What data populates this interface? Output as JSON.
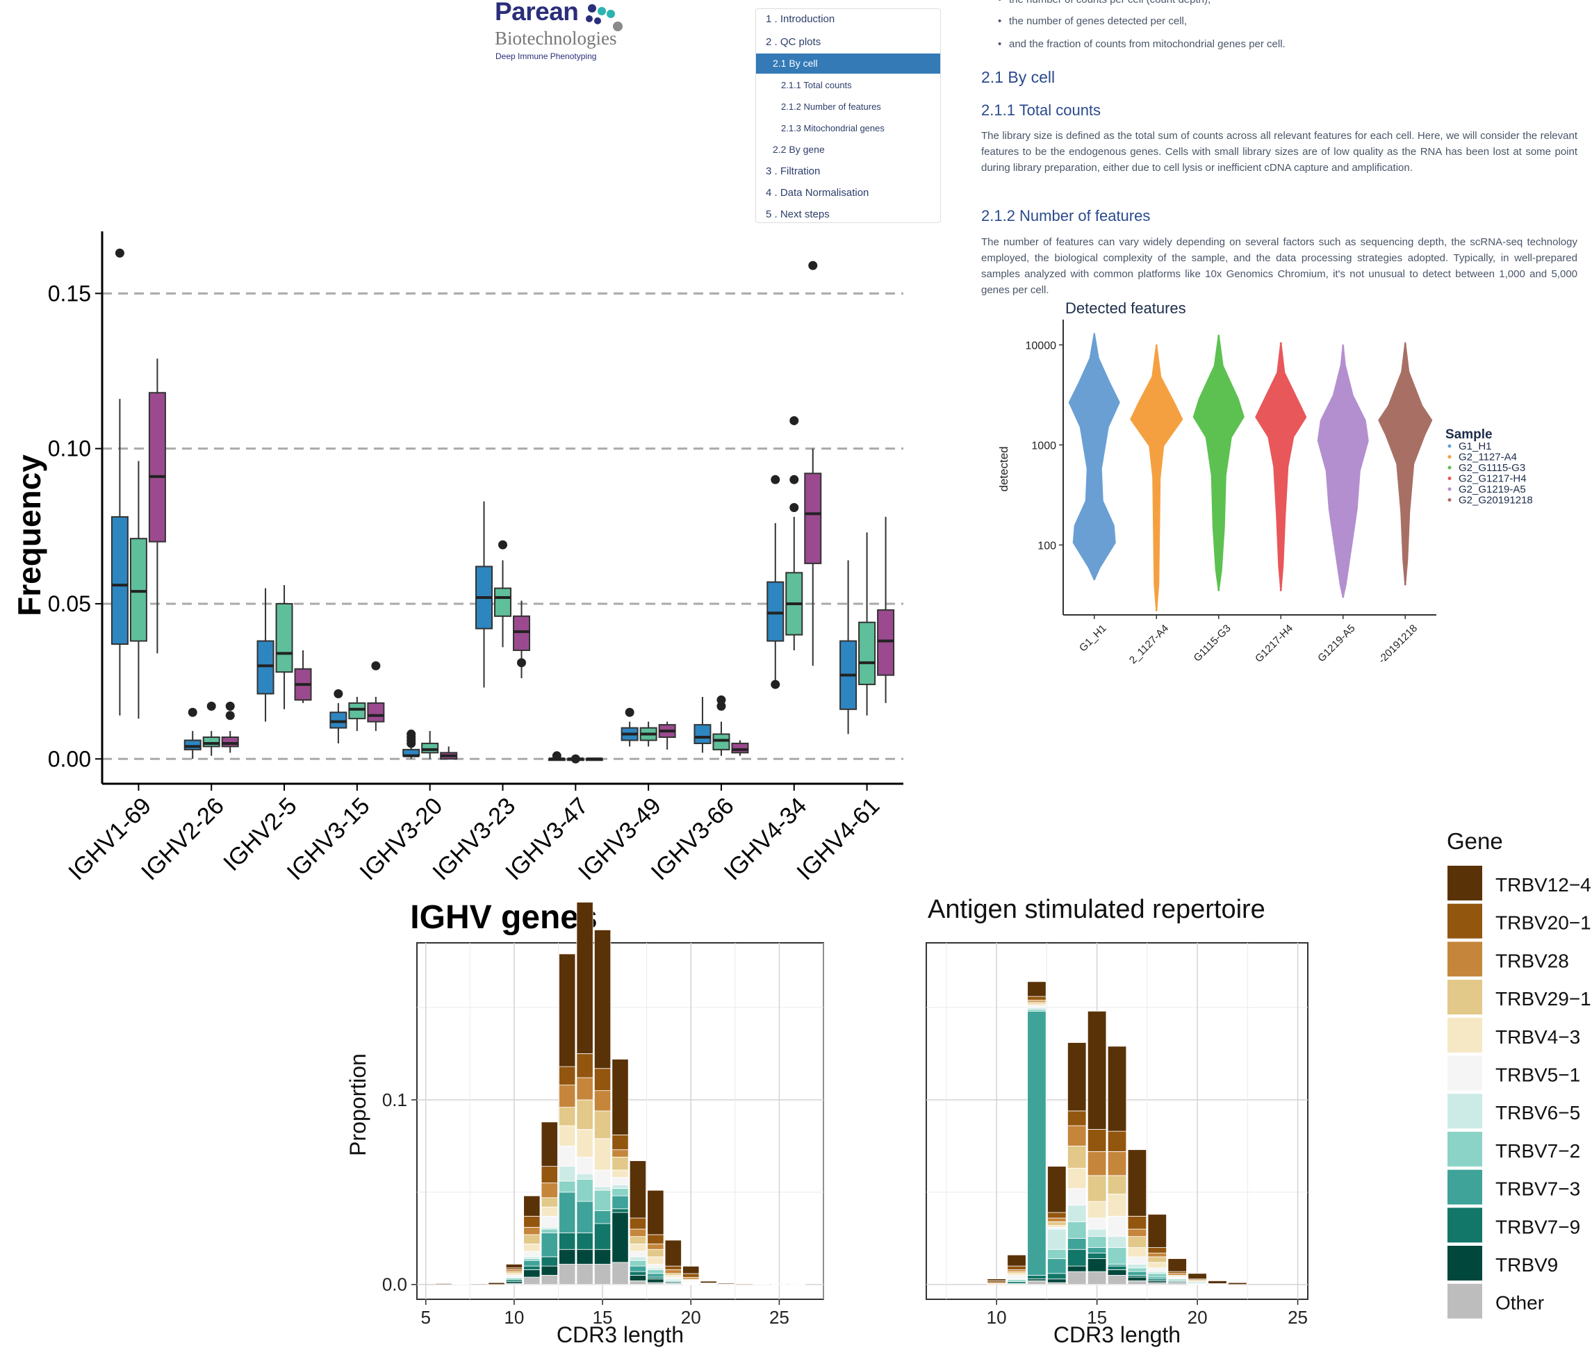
{
  "logo": {
    "name": "Parean",
    "sub": "Biotechnologies",
    "tagline": "Deep Immune Phenotyping",
    "colors": {
      "navy": "#2a2e7a",
      "teal": "#2bb3b1",
      "grey": "#8a8a8a"
    }
  },
  "toc": {
    "items": [
      {
        "label": "1 . Introduction",
        "level": 1,
        "active": false
      },
      {
        "label": "2 . QC plots",
        "level": 1,
        "active": false
      },
      {
        "label": "2.1 By cell",
        "level": 2,
        "active": true
      },
      {
        "label": "2.1.1 Total counts",
        "level": 3,
        "active": false
      },
      {
        "label": "2.1.2 Number of features",
        "level": 3,
        "active": false
      },
      {
        "label": "2.1.3 Mitochondrial genes",
        "level": 3,
        "active": false
      },
      {
        "label": "2.2 By gene",
        "level": 2,
        "active": false
      },
      {
        "label": "3 . Filtration",
        "level": 1,
        "active": false
      },
      {
        "label": "4 . Data Normalisation",
        "level": 1,
        "active": false
      },
      {
        "label": "5 . Next steps",
        "level": 1,
        "active": false
      }
    ]
  },
  "doc": {
    "bullets": [
      "the number of counts per cell (count depth),",
      "the number of genes detected per cell,",
      "and the fraction of counts from mitochondrial genes per cell."
    ],
    "h2": "2.1 By cell",
    "h3a": "2.1.1 Total counts",
    "p1": "The library size is defined as the total sum of counts across all relevant features for each cell. Here, we will consider the relevant features to be the endogenous genes. Cells with small library sizes are of low quality as the RNA has been lost at some point during library preparation, either due to cell lysis or inefficient cDNA capture and amplification.",
    "h3b": "2.1.2 Number of features",
    "p2": "The number of features can vary widely depending on several factors such as sequencing depth, the scRNA-seq technology employed, the biological complexity of the sample, and the data processing strategies adopted. Typically, in well-prepared samples analyzed with common platforms like 10x Genomics Chromium, it's not unusual to detect between 1,000 and 5,000 genes per cell."
  },
  "chart_data": [
    {
      "type": "box",
      "title": "IGHV genes",
      "ylabel": "Frequency",
      "xlabel": "",
      "ylim": [
        -0.008,
        0.17
      ],
      "yticks": [
        "0.00",
        "0.05",
        "0.10",
        "0.15"
      ],
      "grid": "horizontal dashed",
      "series_colors": [
        "#2e86c1",
        "#5fbf9a",
        "#9b4a8f"
      ],
      "categories": [
        "IGHV1-69",
        "IGHV2-26",
        "IGHV2-5",
        "IGHV3-15",
        "IGHV3-20",
        "IGHV3-23",
        "IGHV3-47",
        "IGHV3-49",
        "IGHV3-66",
        "IGHV4-34",
        "IGHV4-61"
      ],
      "boxes": [
        [
          [
            0.014,
            0.037,
            0.056,
            0.078,
            0.116,
            [
              0.163
            ]
          ],
          [
            0.013,
            0.038,
            0.054,
            0.071,
            0.096,
            []
          ],
          [
            0.034,
            0.07,
            0.091,
            0.118,
            0.129,
            []
          ]
        ],
        [
          [
            0.0,
            0.003,
            0.004,
            0.006,
            0.009,
            [
              0.015
            ]
          ],
          [
            0.001,
            0.004,
            0.005,
            0.007,
            0.009,
            [
              0.017
            ]
          ],
          [
            0.002,
            0.004,
            0.005,
            0.007,
            0.009,
            [
              0.017,
              0.014
            ]
          ]
        ],
        [
          [
            0.012,
            0.021,
            0.03,
            0.038,
            0.055,
            []
          ],
          [
            0.016,
            0.028,
            0.034,
            0.05,
            0.056,
            []
          ],
          [
            0.018,
            0.019,
            0.024,
            0.029,
            0.035,
            []
          ]
        ],
        [
          [
            0.005,
            0.01,
            0.012,
            0.015,
            0.018,
            [
              0.021
            ]
          ],
          [
            0.009,
            0.013,
            0.016,
            0.018,
            0.02,
            []
          ],
          [
            0.009,
            0.012,
            0.014,
            0.018,
            0.02,
            [
              0.03
            ]
          ]
        ],
        [
          [
            0.0,
            0.001,
            0.001,
            0.003,
            0.005,
            [
              0.005,
              0.006,
              0.007,
              0.008
            ]
          ],
          [
            0.0,
            0.002,
            0.003,
            0.005,
            0.009,
            []
          ],
          [
            0.0,
            0.0,
            0.001,
            0.002,
            0.004,
            []
          ]
        ],
        [
          [
            0.023,
            0.042,
            0.052,
            0.062,
            0.083,
            []
          ],
          [
            0.036,
            0.046,
            0.052,
            0.055,
            0.064,
            [
              0.069
            ]
          ],
          [
            0.026,
            0.035,
            0.041,
            0.046,
            0.051,
            [
              0.031
            ]
          ]
        ],
        [
          [
            0.0,
            0.0,
            0.0,
            0.0,
            0.0,
            [
              0.001
            ]
          ],
          [
            0.0,
            0.0,
            0.0,
            0.0,
            0.0,
            [
              0.0
            ]
          ],
          [
            0.0,
            0.0,
            0.0,
            0.0,
            0.0,
            []
          ]
        ],
        [
          [
            0.004,
            0.006,
            0.008,
            0.01,
            0.012,
            [
              0.015
            ]
          ],
          [
            0.004,
            0.006,
            0.008,
            0.01,
            0.012,
            []
          ],
          [
            0.003,
            0.007,
            0.009,
            0.011,
            0.012,
            []
          ]
        ],
        [
          [
            0.002,
            0.005,
            0.007,
            0.011,
            0.02,
            []
          ],
          [
            0.001,
            0.003,
            0.006,
            0.008,
            0.012,
            [
              0.017,
              0.019
            ]
          ],
          [
            0.001,
            0.002,
            0.003,
            0.005,
            0.006,
            []
          ]
        ],
        [
          [
            0.024,
            0.038,
            0.047,
            0.057,
            0.076,
            [
              0.09,
              0.024
            ]
          ],
          [
            0.035,
            0.04,
            0.05,
            0.06,
            0.078,
            [
              0.109,
              0.09,
              0.081
            ]
          ],
          [
            0.03,
            0.063,
            0.079,
            0.092,
            0.1,
            [
              0.159
            ]
          ]
        ],
        [
          [
            0.008,
            0.016,
            0.027,
            0.038,
            0.064,
            []
          ],
          [
            0.014,
            0.024,
            0.031,
            0.044,
            0.073,
            []
          ],
          [
            0.018,
            0.027,
            0.038,
            0.048,
            0.078,
            []
          ]
        ]
      ]
    },
    {
      "type": "violin",
      "title": "Detected features",
      "ylabel": "detected",
      "yscale": "log",
      "ylim": [
        20,
        13000
      ],
      "yticks": [
        {
          "value": 100,
          "label": "100"
        },
        {
          "value": 1000,
          "label": "1000"
        },
        {
          "value": 10000,
          "label": "10000"
        }
      ],
      "legend": {
        "title": "Sample",
        "position": "right"
      },
      "series": [
        {
          "name": "G1_H1",
          "tick": "G1_H1",
          "color": "#6a9fd4",
          "min": 45,
          "max": 13000
        },
        {
          "name": "G2_1127-A4",
          "tick": "2_1127-A4",
          "color": "#f5a040",
          "min": 22,
          "max": 10000
        },
        {
          "name": "G2_G1115-G3",
          "tick": "G1115-G3",
          "color": "#5cc150",
          "min": 35,
          "max": 12500
        },
        {
          "name": "G2_G1217-H4",
          "tick": "G1217-H4",
          "color": "#e8575a",
          "min": 35,
          "max": 10500
        },
        {
          "name": "G2_G1219-A5",
          "tick": "G1219-A5",
          "color": "#b38fd0",
          "min": 30,
          "max": 10000
        },
        {
          "name": "G2_G20191218",
          "tick": "-20191218",
          "color": "#a86f65",
          "min": 40,
          "max": 10500
        }
      ]
    },
    {
      "type": "bar",
      "stacked": true,
      "title": "",
      "xlabel": "CDR3 length",
      "ylabel": "Proportion",
      "xlim": [
        4.5,
        27.5
      ],
      "ylim": [
        -0.008,
        0.185
      ],
      "xticks": [
        5,
        10,
        15,
        20,
        25
      ],
      "yticks": [
        "0.0",
        "0.1"
      ],
      "x": [
        6,
        7,
        8,
        9,
        10,
        11,
        12,
        13,
        14,
        15,
        16,
        17,
        18,
        19,
        20,
        21,
        22,
        23,
        24,
        25,
        26
      ],
      "stacks": [
        [
          0.0005,
          0,
          0,
          0,
          0,
          0,
          0,
          0,
          0,
          0,
          0,
          0
        ],
        [
          0.0003,
          0,
          0,
          0,
          0,
          0,
          0,
          0,
          0,
          0,
          0,
          0
        ],
        [
          0.0004,
          0,
          0,
          0,
          0,
          0,
          0,
          0,
          0,
          0,
          0,
          0
        ],
        [
          0.001,
          0,
          0,
          0,
          0,
          0,
          0,
          0,
          0,
          0,
          0,
          0
        ],
        [
          0.002,
          0.001,
          0.001,
          0.001,
          0.001,
          0.001,
          0.0005,
          0.001,
          0,
          0.001,
          0.001,
          0.0005
        ],
        [
          0.011,
          0.006,
          0.004,
          0.005,
          0.004,
          0.003,
          0.001,
          0.001,
          0.003,
          0.002,
          0.004,
          0.004
        ],
        [
          0.024,
          0.009,
          0.008,
          0.005,
          0.005,
          0.006,
          0.001,
          0.002,
          0.013,
          0.005,
          0.005,
          0.005
        ],
        [
          0.061,
          0.01,
          0.012,
          0.01,
          0.011,
          0.011,
          0.008,
          0.006,
          0.022,
          0.009,
          0.008,
          0.011
        ],
        [
          0.082,
          0.013,
          0.012,
          0.016,
          0.015,
          0.009,
          0.003,
          0.012,
          0.017,
          0.009,
          0.008,
          0.011
        ],
        [
          0.075,
          0.012,
          0.011,
          0.015,
          0.017,
          0.009,
          0.002,
          0.011,
          0.007,
          0.014,
          0.008,
          0.011
        ],
        [
          0.041,
          0.008,
          0.004,
          0.007,
          0.004,
          0.004,
          0.002,
          0.004,
          0.007,
          0.002,
          0.027,
          0.012
        ],
        [
          0.031,
          0.006,
          0.004,
          0.004,
          0.004,
          0.003,
          0.002,
          0.003,
          0.003,
          0.002,
          0.003,
          0.002
        ],
        [
          0.024,
          0.005,
          0.003,
          0.004,
          0.004,
          0.002,
          0.001,
          0.002,
          0.002,
          0.001,
          0.002,
          0.001
        ],
        [
          0.014,
          0.002,
          0.002,
          0.001,
          0.001,
          0.001,
          0.0005,
          0.0005,
          0.0005,
          0.0005,
          0.0005,
          0.0005
        ],
        [
          0.004,
          0.002,
          0.001,
          0.0005,
          0.0005,
          0.0005,
          0.0002,
          0.0003,
          0.0003,
          0.0002,
          0.0002,
          0.0002
        ],
        [
          0.001,
          0.0003,
          0.0003,
          0.0002,
          0,
          0,
          0,
          0,
          0,
          0,
          0,
          0
        ],
        [
          0.0005,
          0.0002,
          0,
          0,
          0,
          0,
          0,
          0,
          0,
          0,
          0,
          0
        ],
        [
          0.0004,
          0,
          0,
          0,
          0,
          0,
          0,
          0,
          0,
          0,
          0,
          0
        ],
        [
          0.0003,
          0,
          0,
          0,
          0,
          0,
          0,
          0,
          0,
          0,
          0,
          0
        ],
        [
          0.0002,
          0,
          0,
          0,
          0,
          0,
          0,
          0,
          0,
          0,
          0,
          0
        ],
        [
          0.0002,
          0,
          0,
          0,
          0,
          0,
          0,
          0,
          0,
          0,
          0,
          0
        ]
      ]
    },
    {
      "type": "bar",
      "stacked": true,
      "title": "Antigen stimulated repertoire",
      "xlabel": "CDR3 length",
      "ylabel": "",
      "xlim": [
        6.5,
        25.5
      ],
      "ylim": [
        -0.008,
        0.185
      ],
      "xticks": [
        10,
        15,
        20,
        25
      ],
      "yticks": [],
      "x": [
        10,
        11,
        12,
        13,
        14,
        15,
        16,
        17,
        18,
        19,
        20,
        21,
        22
      ],
      "stacks": [
        [
          0.001,
          0.001,
          0.0005,
          0.0005,
          0,
          0,
          0,
          0,
          0,
          0,
          0,
          0
        ],
        [
          0.006,
          0.002,
          0.001,
          0.001,
          0.001,
          0.002,
          0.0005,
          0.001,
          0,
          0.001,
          0,
          0.0005
        ],
        [
          0.008,
          0.002,
          0.001,
          0.001,
          0.001,
          0.001,
          0.001,
          0.001,
          0.143,
          0.002,
          0.001,
          0.002
        ],
        [
          0.025,
          0.003,
          0.002,
          0.002,
          0.001,
          0.001,
          0.011,
          0.005,
          0.008,
          0.003,
          0.002,
          0.001
        ],
        [
          0.037,
          0.008,
          0.011,
          0.012,
          0.011,
          0.009,
          0.009,
          0.009,
          0.006,
          0.009,
          0.003,
          0.007
        ],
        [
          0.064,
          0.012,
          0.013,
          0.014,
          0.009,
          0.006,
          0.004,
          0.006,
          0.003,
          0.003,
          0.007,
          0.007
        ],
        [
          0.046,
          0.011,
          0.013,
          0.01,
          0.012,
          0.011,
          0.006,
          0.009,
          0.001,
          0.002,
          0.003,
          0.005
        ],
        [
          0.036,
          0.007,
          0.004,
          0.006,
          0.005,
          0.004,
          0.002,
          0.002,
          0.002,
          0.001,
          0.002,
          0.002
        ],
        [
          0.018,
          0.003,
          0.002,
          0.003,
          0.003,
          0.002,
          0.001,
          0.002,
          0.001,
          0.001,
          0.001,
          0.001
        ],
        [
          0.007,
          0.001,
          0.001,
          0.0005,
          0.0005,
          0.0005,
          0.0005,
          0.0005,
          0.0005,
          0.0005,
          0.0005,
          0.001
        ],
        [
          0.003,
          0.0005,
          0.0005,
          0.0005,
          0,
          0,
          0.0005,
          0.0005,
          0.0003,
          0,
          0.0002,
          0
        ],
        [
          0.0015,
          0.0002,
          0.0002,
          0.0001,
          0,
          0,
          0,
          0,
          0,
          0,
          0,
          0
        ],
        [
          0.001,
          0,
          0,
          0,
          0,
          0,
          0,
          0,
          0,
          0,
          0,
          0
        ]
      ]
    }
  ],
  "gene_legend": {
    "title": "Gene",
    "position": "right",
    "items": [
      {
        "name": "TRBV12-4",
        "label": "TRBV12−4",
        "color": "#5a3208"
      },
      {
        "name": "TRBV20-1",
        "label": "TRBV20−1",
        "color": "#93560f"
      },
      {
        "name": "TRBV28",
        "label": "TRBV28",
        "color": "#c5863b"
      },
      {
        "name": "TRBV29-1",
        "label": "TRBV29−1",
        "color": "#e2c889"
      },
      {
        "name": "TRBV4-3",
        "label": "TRBV4−3",
        "color": "#f6e8c5"
      },
      {
        "name": "TRBV5-1",
        "label": "TRBV5−1",
        "color": "#f5f5f5"
      },
      {
        "name": "TRBV6-5",
        "label": "TRBV6−5",
        "color": "#cdebe6"
      },
      {
        "name": "TRBV7-2",
        "label": "TRBV7−2",
        "color": "#8ad3c6"
      },
      {
        "name": "TRBV7-3",
        "label": "TRBV7−3",
        "color": "#3fa39a"
      },
      {
        "name": "TRBV7-9",
        "label": "TRBV7−9",
        "color": "#127668"
      },
      {
        "name": "TRBV9",
        "label": "TRBV9",
        "color": "#01473c"
      },
      {
        "name": "Other",
        "label": "Other",
        "color": "#bdbdbd"
      }
    ]
  }
}
